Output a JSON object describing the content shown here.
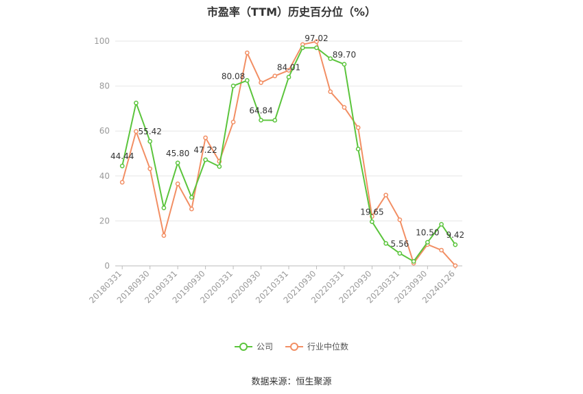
{
  "chart_data": {
    "type": "line",
    "title": "市盈率（TTM）历史百分位（%）",
    "source": "数据来源：恒生聚源",
    "ylim": [
      0,
      100
    ],
    "yticks": [
      0,
      20,
      40,
      60,
      80,
      100
    ],
    "grid": true,
    "legend_position": "bottom",
    "x": [
      "20180331",
      "20180630",
      "20180930",
      "20181231",
      "20190331",
      "20190630",
      "20190930",
      "20191231",
      "20200331",
      "20200630",
      "20200930",
      "20201231",
      "20210331",
      "20210630",
      "20210930",
      "20211231",
      "20220331",
      "20220630",
      "20220930",
      "20221231",
      "20230331",
      "20230630",
      "20230930",
      "20231231",
      "20240126"
    ],
    "x_tick_labels": [
      "20180331",
      "20180930",
      "20190331",
      "20190930",
      "20200331",
      "20200930",
      "20210331",
      "20210930",
      "20220331",
      "20220930",
      "20230331",
      "20230930",
      "20240126"
    ],
    "series": [
      {
        "name": "公司",
        "color": "#5ac43b",
        "values": [
          44.44,
          72.5,
          55.42,
          25.8,
          45.8,
          30.5,
          47.22,
          44.2,
          80.08,
          82.5,
          64.84,
          64.8,
          84.01,
          97.02,
          97.02,
          92.2,
          89.7,
          52.0,
          19.65,
          10.0,
          5.56,
          2.0,
          10.5,
          18.5,
          9.42
        ],
        "labels": {
          "0": "44.44",
          "2": "55.42",
          "4": "45.80",
          "6": "47.22",
          "8": "80.08",
          "10": "64.84",
          "12": "84.01",
          "14": "97.02",
          "16": "89.70",
          "18": "19.65",
          "20": "5.56",
          "22": "10.50",
          "24": "9.42"
        }
      },
      {
        "name": "行业中位数",
        "color": "#f28e63",
        "values": [
          37.2,
          59.8,
          43.2,
          13.5,
          36.5,
          25.3,
          57.0,
          46.5,
          64.0,
          94.8,
          81.5,
          84.5,
          87.0,
          98.5,
          99.8,
          77.5,
          70.5,
          61.5,
          22.0,
          31.5,
          20.5,
          1.2,
          9.5,
          7.0,
          0.1
        ]
      }
    ]
  }
}
